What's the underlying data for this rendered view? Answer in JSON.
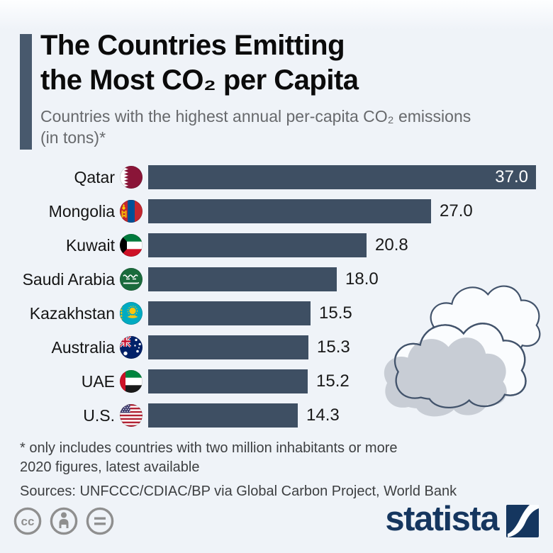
{
  "header": {
    "title_line1": "The Countries Emitting",
    "title_line2": "the Most CO₂ per Capita",
    "subtitle_line1": "Countries with the highest annual per-capita CO₂ emissions",
    "subtitle_line2": "(in tons)*"
  },
  "chart_data": {
    "type": "bar",
    "orientation": "horizontal",
    "title": "The Countries Emitting the Most CO₂ per Capita",
    "categories": [
      "Qatar",
      "Mongolia",
      "Kuwait",
      "Saudi Arabia",
      "Kazakhstan",
      "Australia",
      "UAE",
      "U.S."
    ],
    "values": [
      37.0,
      27.0,
      20.8,
      18.0,
      15.5,
      15.3,
      15.2,
      14.3
    ],
    "value_labels": [
      "37.0",
      "27.0",
      "20.8",
      "18.0",
      "15.5",
      "15.3",
      "15.2",
      "14.3"
    ],
    "flags": [
      "qatar",
      "mongolia",
      "kuwait",
      "saudi-arabia",
      "kazakhstan",
      "australia",
      "uae",
      "us"
    ],
    "xlim": [
      0,
      37
    ],
    "grid": false,
    "legend": "none",
    "bar_color": "#3e4f63",
    "value_label_placement": [
      "inside",
      "outside",
      "outside",
      "outside",
      "outside",
      "outside",
      "outside",
      "outside"
    ]
  },
  "footnotes": {
    "note_line1": "* only includes countries with two million inhabitants or more",
    "note_line2": "2020 figures, latest available",
    "sources": "Sources: UNFCCC/CDIAC/BP via Global Carbon Project, World Bank"
  },
  "branding": {
    "logo_text": "statista"
  },
  "license_icons": [
    "cc-icon",
    "attribution-icon",
    "no-derivatives-icon"
  ],
  "colors": {
    "background": "#eff3f8",
    "bar": "#3e4f63",
    "accent_bar": "#48596d",
    "title_text": "#0b0b0b",
    "subtitle_text": "#67696c",
    "value_inside_text": "#ffffff",
    "value_outside_text": "#191919",
    "footnote_text": "#3d3f41",
    "statista_navy": "#15365f",
    "license_gray": "#8f8f8f",
    "cloud_outline": "#42536b",
    "cloud_gray": "#c8cdd5"
  }
}
